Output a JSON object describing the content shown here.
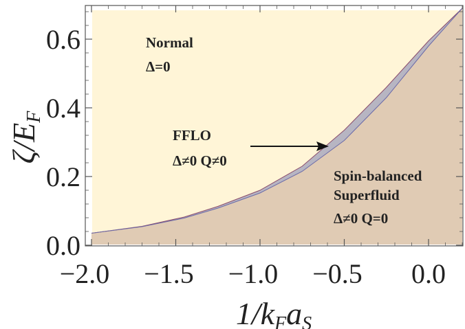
{
  "chart_data": {
    "type": "area",
    "xlabel": "1/k_F a_S",
    "ylabel": "ζ/E_F",
    "xlim": [
      -2.05,
      0.2
    ],
    "ylim": [
      0.0,
      0.69
    ],
    "x_ticks": [
      -2.0,
      -1.5,
      -1.0,
      -0.5,
      0.0
    ],
    "x_tick_labels": [
      "−2.0",
      "−1.5",
      "−1.0",
      "−0.5",
      "0.0"
    ],
    "y_ticks": [
      0.0,
      0.2,
      0.4,
      0.6
    ],
    "y_tick_labels": [
      "0.0",
      "0.2",
      "0.4",
      "0.6"
    ],
    "grid": false,
    "series": [
      {
        "x": [
          -2.0,
          -1.7,
          -1.45,
          -1.25,
          -1.0,
          -0.75,
          -0.5,
          -0.25,
          0.0,
          0.2
        ],
        "y": [
          0.035,
          0.055,
          0.082,
          0.113,
          0.16,
          0.23,
          0.335,
          0.46,
          0.595,
          0.69
        ]
      },
      {
        "x": [
          -2.0,
          -1.7,
          -1.45,
          -1.25,
          -1.0,
          -0.75,
          -0.5,
          -0.25,
          0.0,
          0.2
        ],
        "y": [
          0.035,
          0.054,
          0.079,
          0.108,
          0.152,
          0.215,
          0.305,
          0.43,
          0.58,
          0.69
        ]
      }
    ],
    "regions": [
      {
        "title": "Normal",
        "condition": "Δ=0",
        "color": "#fff5d7"
      },
      {
        "title": "FFLO",
        "condition": "Δ≠0 Q≠0",
        "color": "#b7b5c2"
      },
      {
        "title": "Spin-balanced",
        "title2": "Superfluid",
        "condition": "Δ≠0 Q=0",
        "color": "#e0cbb4"
      }
    ]
  }
}
